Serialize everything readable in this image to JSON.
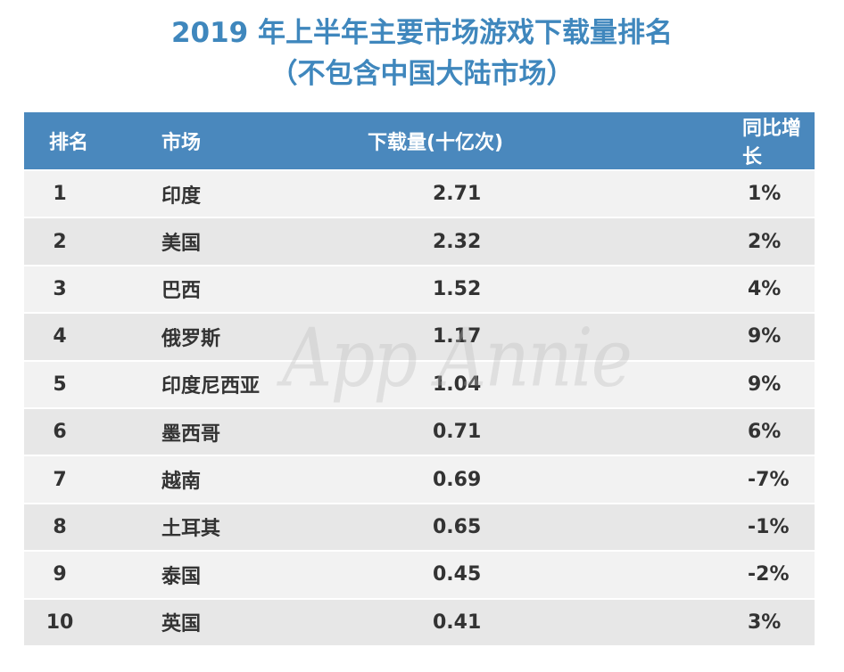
{
  "title_line1": "2019 年上半年主要市场游戏下载量排名",
  "title_line2": "（不包含中国大陆市场）",
  "watermark": "App Annie",
  "colors": {
    "title": "#3f87bd",
    "header_bg": "#4a88bd",
    "row_light": "#f2f2f2",
    "row_dark": "#e7e7e7"
  },
  "chart_data": {
    "type": "table",
    "columns": [
      "排名",
      "市场",
      "下载量(十亿次)",
      "同比增长"
    ],
    "rows": [
      {
        "rank": "1",
        "market": "印度",
        "downloads": "2.71",
        "growth": "1%"
      },
      {
        "rank": "2",
        "market": "美国",
        "downloads": "2.32",
        "growth": "2%"
      },
      {
        "rank": "3",
        "market": "巴西",
        "downloads": "1.52",
        "growth": "4%"
      },
      {
        "rank": "4",
        "market": "俄罗斯",
        "downloads": "1.17",
        "growth": "9%"
      },
      {
        "rank": "5",
        "market": "印度尼西亚",
        "downloads": "1.04",
        "growth": "9%"
      },
      {
        "rank": "6",
        "market": "墨西哥",
        "downloads": "0.71",
        "growth": "6%"
      },
      {
        "rank": "7",
        "market": "越南",
        "downloads": "0.69",
        "growth": "-7%"
      },
      {
        "rank": "8",
        "market": "土耳其",
        "downloads": "0.65",
        "growth": "-1%"
      },
      {
        "rank": "9",
        "market": "泰国",
        "downloads": "0.45",
        "growth": "-2%"
      },
      {
        "rank": "10",
        "market": "英国",
        "downloads": "0.41",
        "growth": "3%"
      }
    ]
  }
}
